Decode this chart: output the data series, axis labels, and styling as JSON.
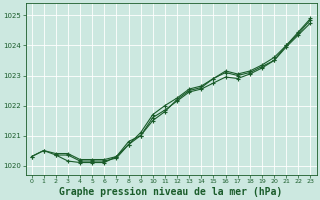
{
  "bg_color": "#cce8e0",
  "line_color": "#1a5c2a",
  "xlabel": "Graphe pression niveau de la mer (hPa)",
  "xlabel_fontsize": 7,
  "ylim": [
    1019.7,
    1025.4
  ],
  "xlim": [
    -0.5,
    23.5
  ],
  "yticks": [
    1020,
    1021,
    1022,
    1023,
    1024,
    1025
  ],
  "xticks": [
    0,
    1,
    2,
    3,
    4,
    5,
    6,
    7,
    8,
    9,
    10,
    11,
    12,
    13,
    14,
    15,
    16,
    17,
    18,
    19,
    20,
    21,
    22,
    23
  ],
  "line1_x": [
    0,
    1,
    2,
    3,
    4,
    5,
    6,
    7,
    8,
    9,
    10,
    11,
    12,
    13,
    14,
    15,
    16,
    17,
    18,
    19,
    20,
    21,
    22,
    23
  ],
  "line1_y": [
    1020.3,
    1020.5,
    1020.4,
    1020.4,
    1020.2,
    1020.2,
    1020.2,
    1020.3,
    1020.8,
    1021.0,
    1021.5,
    1021.8,
    1022.2,
    1022.5,
    1022.6,
    1022.9,
    1023.1,
    1023.0,
    1023.1,
    1023.3,
    1023.5,
    1024.0,
    1024.4,
    1024.85
  ],
  "line2_x": [
    0,
    1,
    2,
    3,
    4,
    5,
    6,
    7,
    8,
    9,
    10,
    11,
    12,
    13,
    14,
    15,
    16,
    17,
    18,
    19,
    20,
    21,
    22,
    23
  ],
  "line2_y": [
    1020.3,
    1020.5,
    1020.35,
    1020.35,
    1020.15,
    1020.15,
    1020.15,
    1020.25,
    1020.7,
    1021.1,
    1021.7,
    1022.0,
    1022.25,
    1022.55,
    1022.65,
    1022.9,
    1023.15,
    1023.05,
    1023.15,
    1023.35,
    1023.6,
    1024.0,
    1024.45,
    1024.9
  ],
  "line3_x": [
    2,
    3,
    4,
    5,
    6,
    7,
    8,
    9,
    10,
    11,
    12,
    13,
    14,
    15,
    16,
    17,
    18,
    19,
    20,
    21,
    22,
    23
  ],
  "line3_y": [
    1020.35,
    1020.15,
    1020.1,
    1020.1,
    1020.1,
    1020.3,
    1020.7,
    1021.0,
    1021.6,
    1021.85,
    1022.15,
    1022.45,
    1022.55,
    1022.75,
    1022.95,
    1022.9,
    1023.05,
    1023.25,
    1023.5,
    1023.95,
    1024.35,
    1024.75
  ]
}
